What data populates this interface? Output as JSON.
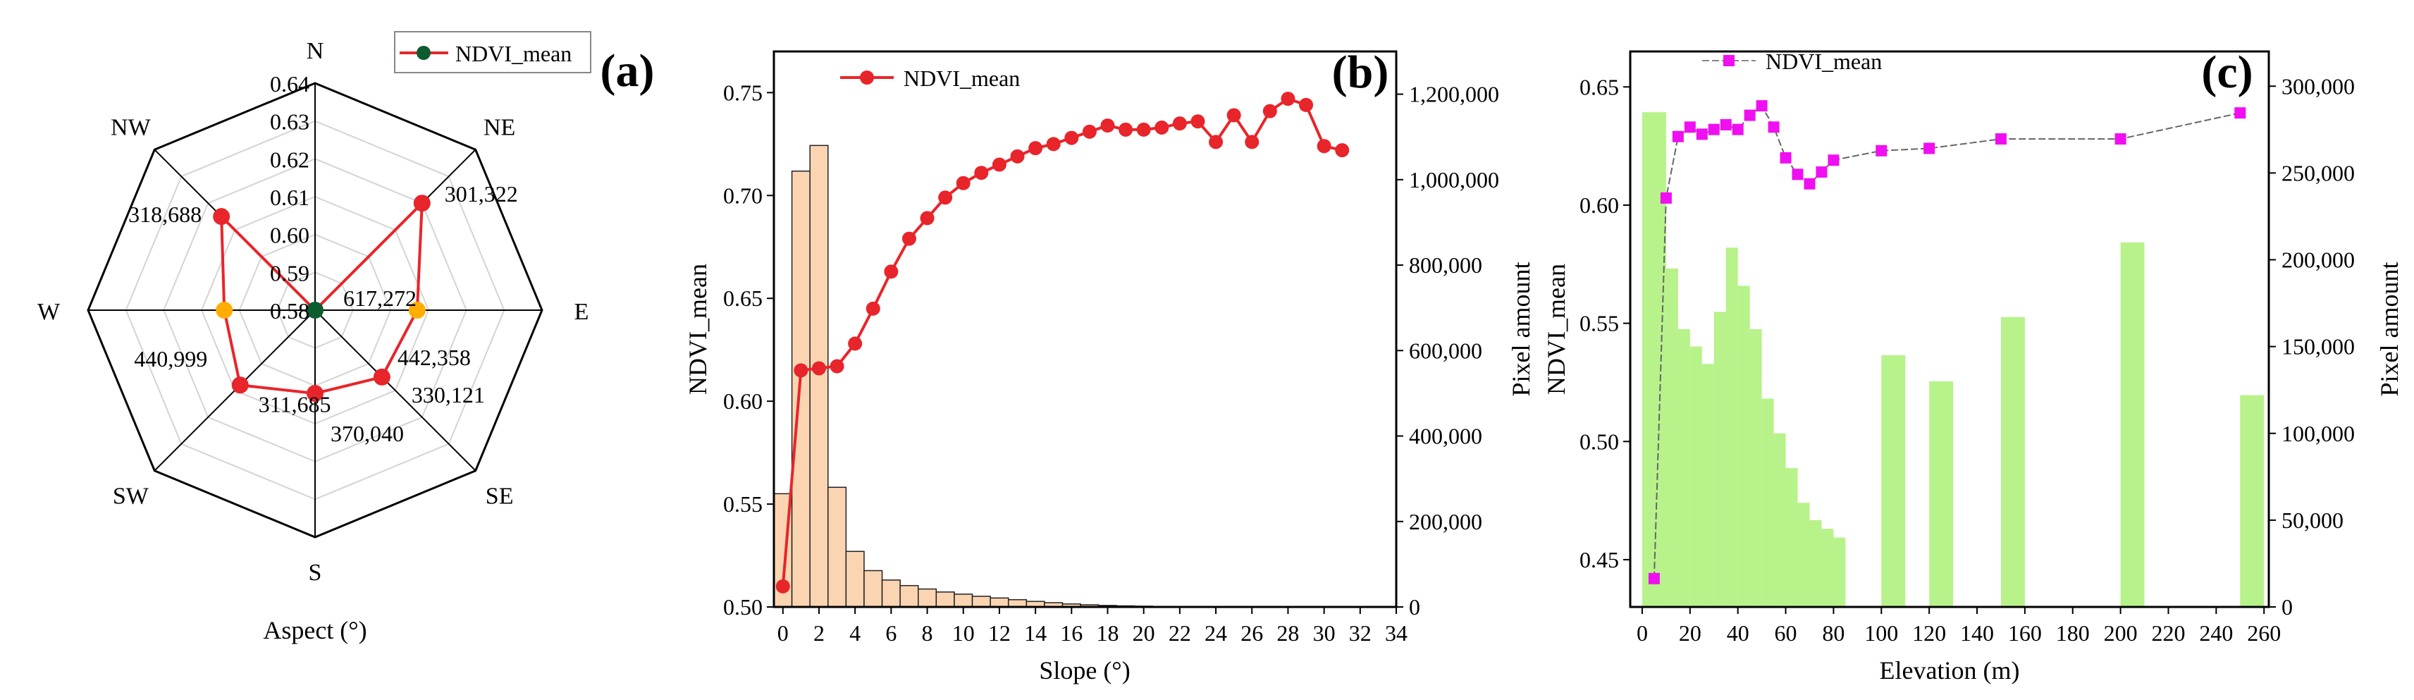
{
  "colors": {
    "red": "#e8252a",
    "dark_red": "#c40000",
    "orange": "#ffae00",
    "dark_green": "#0d5c2f",
    "magenta": "#f00ff0",
    "bar_peach": "#fbd5b2",
    "bar_green": "#b8f28a",
    "grid": "#d4d4d4",
    "axis": "#000000"
  },
  "chart_data": [
    {
      "type": "radar",
      "panel_label": "(a)",
      "xlabel": "Aspect (°)",
      "legend": "NDVI_mean",
      "directions": [
        "N",
        "NE",
        "E",
        "SE",
        "S",
        "SW",
        "W",
        "NW"
      ],
      "ndvi_mean": [
        0.58,
        0.62,
        0.607,
        0.605,
        0.602,
        0.608,
        0.604,
        0.615
      ],
      "pixel_labels": [
        "617,272",
        "301,322",
        "442,358",
        "330,121",
        "370,040",
        "311,685",
        "440,999",
        "318,688"
      ],
      "marker_kind": [
        "dark_green",
        "red",
        "orange",
        "red",
        "red",
        "red",
        "orange",
        "red"
      ],
      "radial_ticks": [
        "0.58",
        "0.59",
        "0.60",
        "0.61",
        "0.62",
        "0.63",
        "0.64"
      ],
      "rlim": [
        0.58,
        0.64
      ]
    },
    {
      "type": "bar+line",
      "panel_label": "(b)",
      "xlabel": "Slope (°)",
      "ylabel_left": "NDVI_mean",
      "ylabel_right": "Pixel amount",
      "legend": "NDVI_mean",
      "xlim": [
        -0.5,
        34
      ],
      "ylim_left": [
        0.5,
        0.77
      ],
      "ylim_right": [
        0,
        1300000
      ],
      "x_ticks": [
        "0",
        "2",
        "4",
        "6",
        "8",
        "10",
        "12",
        "14",
        "16",
        "18",
        "20",
        "22",
        "24",
        "26",
        "28",
        "30",
        "32",
        "34"
      ],
      "y_left_ticks": [
        "0.50",
        "0.55",
        "0.60",
        "0.65",
        "0.70",
        "0.75"
      ],
      "y_right_ticks": [
        "0",
        "200,000",
        "400,000",
        "600,000",
        "800,000",
        "1,000,000",
        "1,200,000"
      ],
      "bars": {
        "x": [
          0,
          1,
          2,
          3,
          4,
          5,
          6,
          7,
          8,
          9,
          10,
          11,
          12,
          13,
          14,
          15,
          16,
          17,
          18,
          19,
          20,
          21,
          22
        ],
        "values": [
          265000,
          1020000,
          1080000,
          280000,
          130000,
          85000,
          63000,
          50000,
          42000,
          35000,
          30000,
          25000,
          21000,
          17000,
          13000,
          10000,
          7000,
          5000,
          3500,
          2500,
          1800,
          1200,
          800
        ]
      },
      "line": {
        "x": [
          0,
          1,
          2,
          3,
          4,
          5,
          6,
          7,
          8,
          9,
          10,
          11,
          12,
          13,
          14,
          15,
          16,
          17,
          18,
          19,
          20,
          21,
          22,
          23,
          24,
          25,
          26,
          27,
          28,
          29,
          30,
          31
        ],
        "y": [
          0.51,
          0.615,
          0.616,
          0.617,
          0.628,
          0.645,
          0.663,
          0.679,
          0.689,
          0.699,
          0.706,
          0.711,
          0.715,
          0.719,
          0.723,
          0.725,
          0.728,
          0.731,
          0.734,
          0.732,
          0.732,
          0.733,
          0.735,
          0.736,
          0.726,
          0.739,
          0.726,
          0.741,
          0.747,
          0.744,
          0.724,
          0.722
        ]
      }
    },
    {
      "type": "bar+line",
      "panel_label": "(c)",
      "xlabel": "Elevation (m)",
      "ylabel_left": "NDVI_mean",
      "ylabel_right": "Pixel amount",
      "legend": "NDVI_mean",
      "xlim": [
        -5,
        262
      ],
      "ylim_left": [
        0.43,
        0.665
      ],
      "ylim_right": [
        0,
        320000
      ],
      "x_ticks": [
        "0",
        "20",
        "40",
        "60",
        "80",
        "100",
        "120",
        "140",
        "160",
        "180",
        "200",
        "220",
        "240",
        "260"
      ],
      "y_left_ticks": [
        "0.45",
        "0.50",
        "0.55",
        "0.60",
        "0.65"
      ],
      "y_right_ticks": [
        "0",
        "50,000",
        "100,000",
        "150,000",
        "200,000",
        "250,000",
        "300,000"
      ],
      "bars": {
        "x": [
          0,
          10,
          15,
          20,
          25,
          30,
          35,
          40,
          45,
          50,
          55,
          60,
          65,
          70,
          75,
          80,
          85,
          100,
          120,
          150,
          200,
          250
        ],
        "width": [
          10,
          5,
          5,
          5,
          5,
          5,
          5,
          5,
          5,
          5,
          5,
          5,
          5,
          5,
          5,
          5,
          5,
          10,
          10,
          10,
          10,
          10
        ],
        "values": [
          285000,
          195000,
          160000,
          150000,
          140000,
          170000,
          207000,
          185000,
          160000,
          120000,
          100000,
          80000,
          60000,
          50000,
          45000,
          40000,
          0,
          145000,
          130000,
          167000,
          210000,
          122000
        ]
      },
      "line": {
        "x": [
          5,
          10,
          15,
          20,
          25,
          30,
          35,
          40,
          45,
          50,
          55,
          60,
          65,
          70,
          75,
          80,
          100,
          120,
          150,
          200,
          250
        ],
        "y": [
          0.442,
          0.603,
          0.629,
          0.633,
          0.63,
          0.632,
          0.634,
          0.632,
          0.638,
          0.642,
          0.633,
          0.62,
          0.613,
          0.609,
          0.614,
          0.619,
          0.623,
          0.624,
          0.628,
          0.628,
          0.639
        ]
      }
    }
  ]
}
